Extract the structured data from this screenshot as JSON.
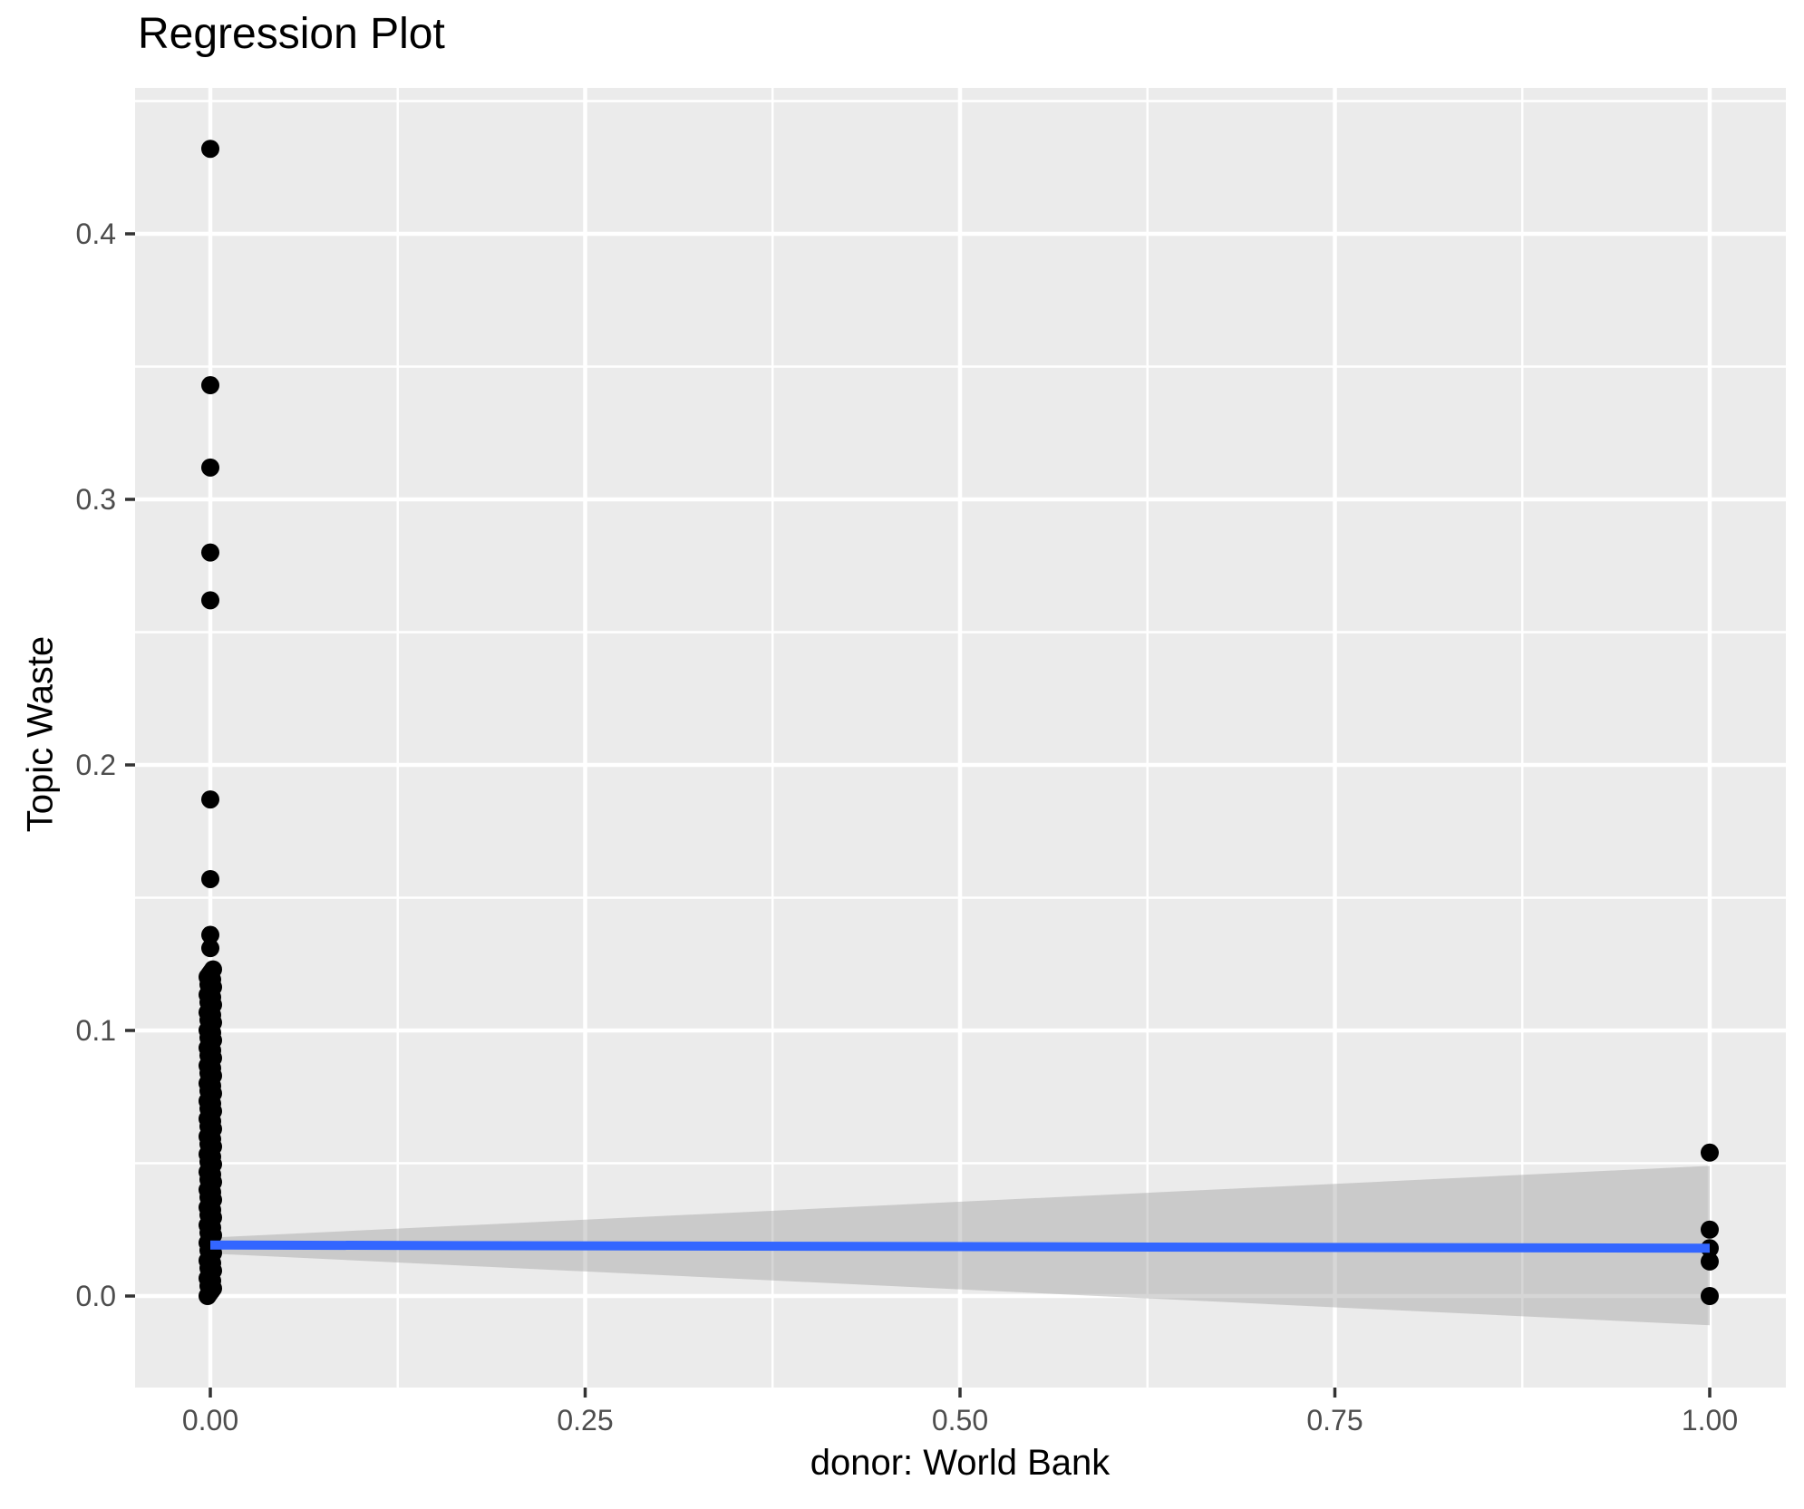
{
  "title": "Regression Plot",
  "colors": {
    "panel_background": "#EBEBEB",
    "gridline": "#FFFFFF",
    "regression_line": "#3366FF",
    "confidence_band": "rgba(153,153,153,0.4)",
    "point": "#000000",
    "tick_mark": "#333333",
    "tick_label": "#4D4D4D",
    "title_text": "#000000"
  },
  "chart_data": {
    "type": "scatter",
    "title": "Regression Plot",
    "xlabel": "donor: World Bank",
    "ylabel": "Topic Waste",
    "xlim": [
      -0.05,
      1.05
    ],
    "ylim": [
      -0.034,
      0.455
    ],
    "grid": "on",
    "legend": "none",
    "x_ticks": {
      "values": [
        0,
        0.25,
        0.5,
        0.75,
        1.0
      ],
      "labels": [
        "0.00",
        "0.25",
        "0.50",
        "0.75",
        "1.00"
      ]
    },
    "y_ticks": {
      "values": [
        0,
        0.1,
        0.2,
        0.3,
        0.4
      ],
      "labels": [
        "0.0",
        "0.1",
        "0.2",
        "0.3",
        "0.4"
      ]
    },
    "x_minor_ticks": [
      0.125,
      0.375,
      0.625,
      0.875
    ],
    "y_minor_ticks": [
      0.05,
      0.15,
      0.25,
      0.35,
      0.45
    ],
    "series": [
      {
        "name": "observations at donor=0 (outliers)",
        "x": [
          0,
          0,
          0,
          0,
          0,
          0,
          0,
          0,
          0
        ],
        "y": [
          0.432,
          0.343,
          0.312,
          0.28,
          0.262,
          0.187,
          0.157,
          0.136,
          0.131
        ]
      },
      {
        "name": "observations at donor=0 (dense overlapping column)",
        "x_value": 0,
        "y_min": 0.0,
        "y_max": 0.123,
        "count": 130
      },
      {
        "name": "observations at donor=1",
        "x": [
          1,
          1,
          1,
          1,
          1
        ],
        "y": [
          0.054,
          0.025,
          0.018,
          0.013,
          0.0
        ]
      }
    ],
    "regression_line": {
      "x": [
        0,
        1
      ],
      "y": [
        0.0192,
        0.018
      ]
    },
    "confidence_band": {
      "x": [
        0,
        1
      ],
      "upper": [
        0.022,
        0.049
      ],
      "lower": [
        0.016,
        -0.011
      ]
    }
  }
}
